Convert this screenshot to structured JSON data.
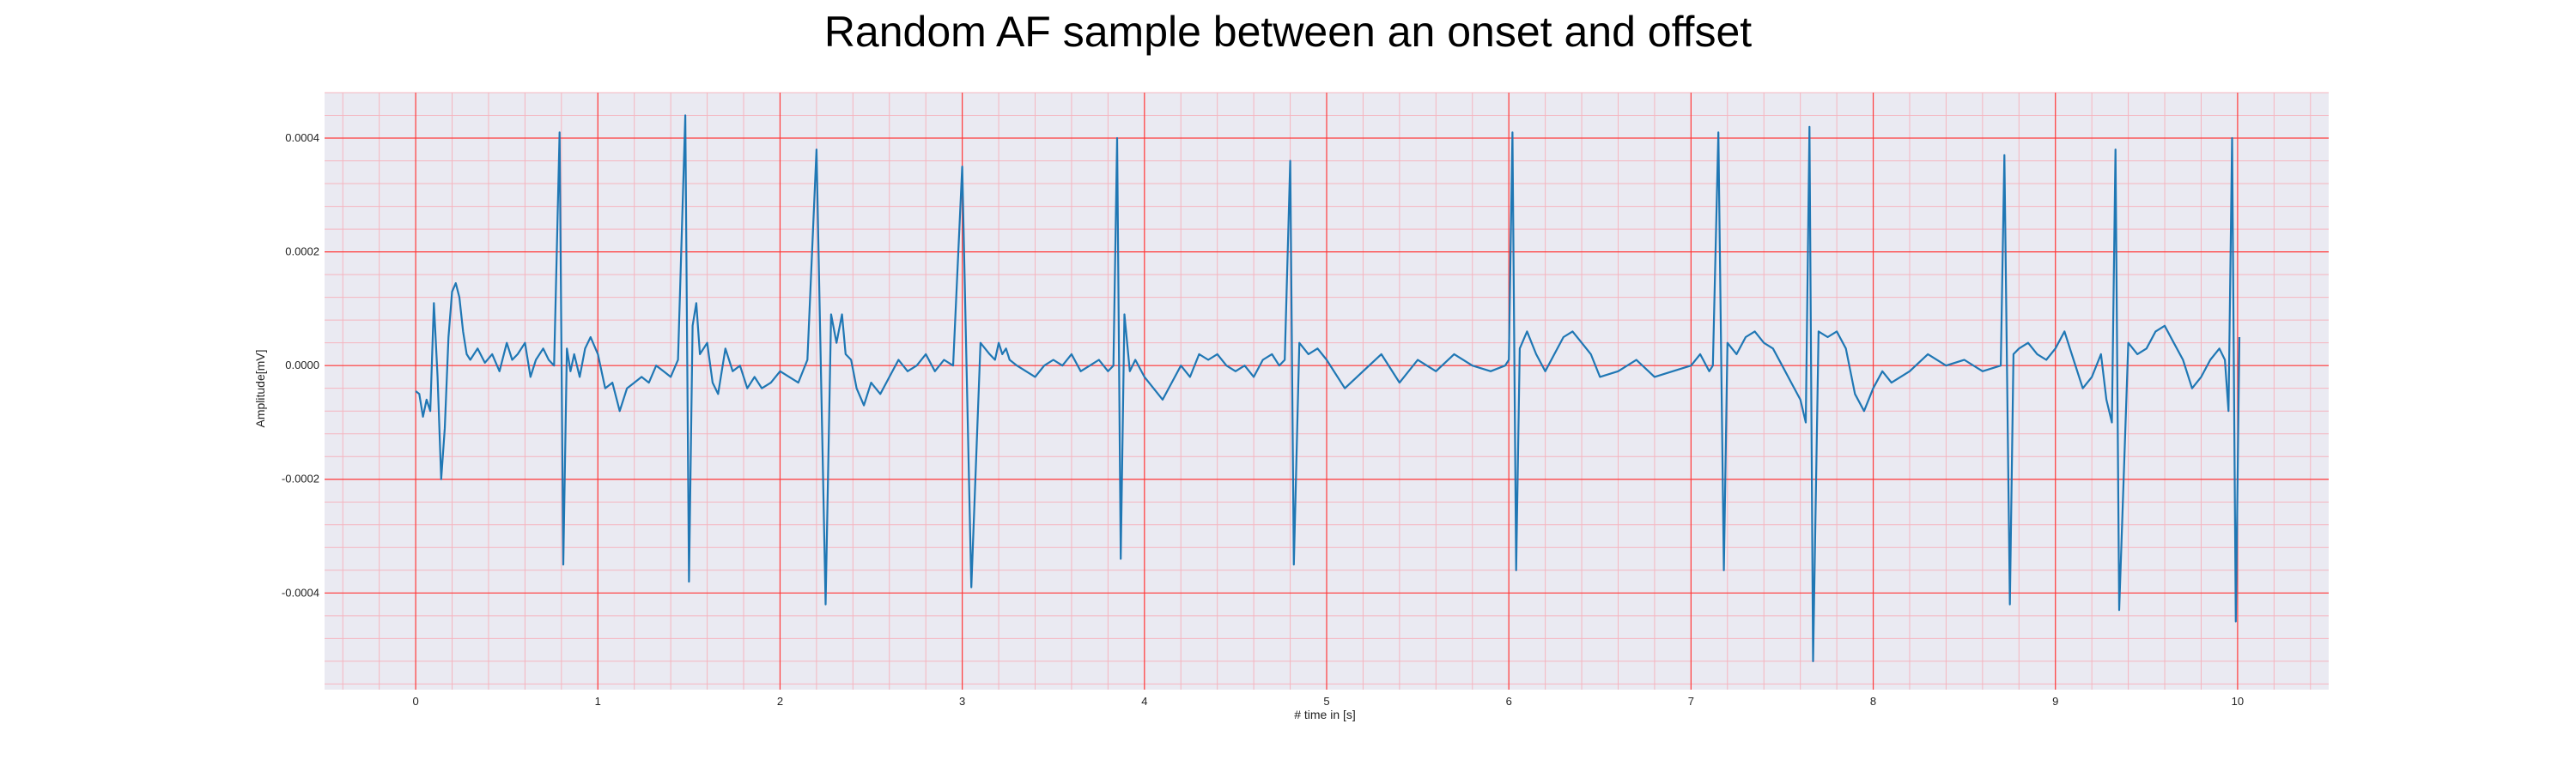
{
  "chart_data": {
    "type": "line",
    "title": "Random AF sample between an onset and offset",
    "xlabel": "# time in [s]",
    "ylabel": "Amplitude[mV]",
    "xlim": [
      -0.5,
      10.5
    ],
    "ylim": [
      -0.00057,
      0.00048
    ],
    "xticks": [
      0,
      1,
      2,
      3,
      4,
      5,
      6,
      7,
      8,
      9,
      10
    ],
    "xtick_labels": [
      "0",
      "1",
      "2",
      "3",
      "4",
      "5",
      "6",
      "7",
      "8",
      "9",
      "10"
    ],
    "yticks": [
      -0.0004,
      -0.0002,
      0.0,
      0.0002,
      0.0004
    ],
    "ytick_labels": [
      "-0.0004",
      "-0.0002",
      "0.0000",
      "0.0002",
      "0.0004"
    ],
    "grid": true,
    "colors": {
      "plot_background": "#eaeaf2",
      "major_grid": "#ff3b3b",
      "minor_grid": "#f5b5bf",
      "line": "#1f77b4"
    },
    "series": [
      {
        "x": [
          0,
          0.02,
          0.04,
          0.06,
          0.08,
          0.1,
          0.12,
          0.14,
          0.16,
          0.18,
          0.2,
          0.22,
          0.24,
          0.26,
          0.28,
          0.3,
          0.34,
          0.38,
          0.42,
          0.46,
          0.5,
          0.53,
          0.56,
          0.6,
          0.63,
          0.66,
          0.7,
          0.73,
          0.76,
          0.79,
          0.81,
          0.83,
          0.85,
          0.87,
          0.9,
          0.93,
          0.96,
          1.0,
          1.04,
          1.08,
          1.12,
          1.16,
          1.2,
          1.24,
          1.28,
          1.32,
          1.36,
          1.4,
          1.44,
          1.48,
          1.5,
          1.52,
          1.54,
          1.56,
          1.6,
          1.63,
          1.66,
          1.7,
          1.74,
          1.78,
          1.82,
          1.86,
          1.9,
          1.95,
          2.0,
          2.05,
          2.1,
          2.15,
          2.2,
          2.25,
          2.28,
          2.31,
          2.34,
          2.36,
          2.39,
          2.42,
          2.46,
          2.5,
          2.55,
          2.6,
          2.65,
          2.7,
          2.75,
          2.8,
          2.85,
          2.9,
          2.95,
          3.0,
          3.05,
          3.1,
          3.15,
          3.18,
          3.2,
          3.22,
          3.24,
          3.26,
          3.3,
          3.35,
          3.4,
          3.45,
          3.5,
          3.55,
          3.6,
          3.65,
          3.7,
          3.75,
          3.8,
          3.83,
          3.85,
          3.87,
          3.89,
          3.92,
          3.95,
          4.0,
          4.05,
          4.1,
          4.15,
          4.2,
          4.25,
          4.3,
          4.35,
          4.4,
          4.45,
          4.5,
          4.55,
          4.6,
          4.65,
          4.7,
          4.74,
          4.77,
          4.8,
          4.82,
          4.85,
          4.9,
          4.95,
          5.0,
          5.1,
          5.2,
          5.3,
          5.4,
          5.5,
          5.6,
          5.7,
          5.8,
          5.9,
          5.98,
          6.0,
          6.02,
          6.04,
          6.06,
          6.1,
          6.15,
          6.2,
          6.25,
          6.3,
          6.35,
          6.4,
          6.45,
          6.5,
          6.6,
          6.7,
          6.8,
          6.9,
          7.0,
          7.05,
          7.1,
          7.12,
          7.15,
          7.18,
          7.2,
          7.25,
          7.3,
          7.35,
          7.4,
          7.45,
          7.5,
          7.55,
          7.6,
          7.63,
          7.65,
          7.67,
          7.7,
          7.75,
          7.8,
          7.85,
          7.9,
          7.95,
          8.0,
          8.05,
          8.1,
          8.15,
          8.2,
          8.3,
          8.4,
          8.5,
          8.6,
          8.7,
          8.72,
          8.75,
          8.77,
          8.8,
          8.85,
          8.9,
          8.95,
          9.0,
          9.05,
          9.1,
          9.15,
          9.2,
          9.25,
          9.28,
          9.31,
          9.33,
          9.35,
          9.4,
          9.45,
          9.5,
          9.55,
          9.6,
          9.65,
          9.7,
          9.75,
          9.8,
          9.85,
          9.9,
          9.93,
          9.95,
          9.97,
          9.99,
          10.01
        ],
        "y": [
          -4.5e-05,
          -5e-05,
          -9e-05,
          -6e-05,
          -8e-05,
          0.00011,
          -2e-05,
          -0.0002,
          -0.00011,
          5e-05,
          0.00013,
          0.000145,
          0.00012,
          6e-05,
          2e-05,
          1e-05,
          3e-05,
          5e-06,
          2e-05,
          -1e-05,
          4e-05,
          1e-05,
          2e-05,
          4e-05,
          -2e-05,
          1e-05,
          3e-05,
          1e-05,
          0.0,
          0.00041,
          -0.00035,
          3e-05,
          -1e-05,
          2e-05,
          -2e-05,
          3e-05,
          5e-05,
          2e-05,
          -4e-05,
          -3e-05,
          -8e-05,
          -4e-05,
          -3e-05,
          -2e-05,
          -3e-05,
          0.0,
          -1e-05,
          -2e-05,
          1e-05,
          0.00044,
          -0.00038,
          7e-05,
          0.00011,
          2e-05,
          4e-05,
          -3e-05,
          -5e-05,
          3e-05,
          -1e-05,
          0.0,
          -4e-05,
          -2e-05,
          -4e-05,
          -3e-05,
          -1e-05,
          -2e-05,
          -3e-05,
          1e-05,
          0.00038,
          -0.00042,
          9e-05,
          4e-05,
          9e-05,
          2e-05,
          1e-05,
          -4e-05,
          -7e-05,
          -3e-05,
          -5e-05,
          -2e-05,
          1e-05,
          -1e-05,
          0.0,
          2e-05,
          -1e-05,
          1e-05,
          0.0,
          0.00035,
          -0.00039,
          4e-05,
          2e-05,
          1e-05,
          4e-05,
          2e-05,
          3e-05,
          1e-05,
          0.0,
          -1e-05,
          -2e-05,
          0.0,
          1e-05,
          0.0,
          2e-05,
          -1e-05,
          0.0,
          1e-05,
          -1e-05,
          0.0,
          0.0004,
          -0.00034,
          9e-05,
          -1e-05,
          1e-05,
          -2e-05,
          -4e-05,
          -6e-05,
          -3e-05,
          0.0,
          -2e-05,
          2e-05,
          1e-05,
          2e-05,
          0.0,
          -1e-05,
          0.0,
          -2e-05,
          1e-05,
          2e-05,
          0.0,
          1e-05,
          0.00036,
          -0.00035,
          4e-05,
          2e-05,
          3e-05,
          1e-05,
          -4e-05,
          -1e-05,
          2e-05,
          -3e-05,
          1e-05,
          -1e-05,
          2e-05,
          0.0,
          -1e-05,
          0.0,
          1e-05,
          0.00041,
          -0.00036,
          3e-05,
          6e-05,
          2e-05,
          -1e-05,
          2e-05,
          5e-05,
          6e-05,
          4e-05,
          2e-05,
          -2e-05,
          -1e-05,
          1e-05,
          -2e-05,
          -1e-05,
          0.0,
          2e-05,
          -1e-05,
          0.0,
          0.00041,
          -0.00036,
          4e-05,
          2e-05,
          5e-05,
          6e-05,
          4e-05,
          3e-05,
          0.0,
          -3e-05,
          -6e-05,
          -0.0001,
          0.00042,
          -0.00052,
          6e-05,
          5e-05,
          6e-05,
          3e-05,
          -5e-05,
          -8e-05,
          -4e-05,
          -1e-05,
          -3e-05,
          -2e-05,
          -1e-05,
          2e-05,
          0.0,
          1e-05,
          -1e-05,
          0.0,
          0.00037,
          -0.00042,
          2e-05,
          3e-05,
          4e-05,
          2e-05,
          1e-05,
          3e-05,
          6e-05,
          1e-05,
          -4e-05,
          -2e-05,
          2e-05,
          -6e-05,
          -0.0001,
          0.00038,
          -0.00043,
          4e-05,
          2e-05,
          3e-05,
          6e-05,
          7e-05,
          4e-05,
          1e-05,
          -4e-05,
          -2e-05,
          1e-05,
          3e-05,
          1e-05,
          -8e-05,
          0.0004,
          -0.00045,
          5e-05
        ]
      }
    ]
  }
}
